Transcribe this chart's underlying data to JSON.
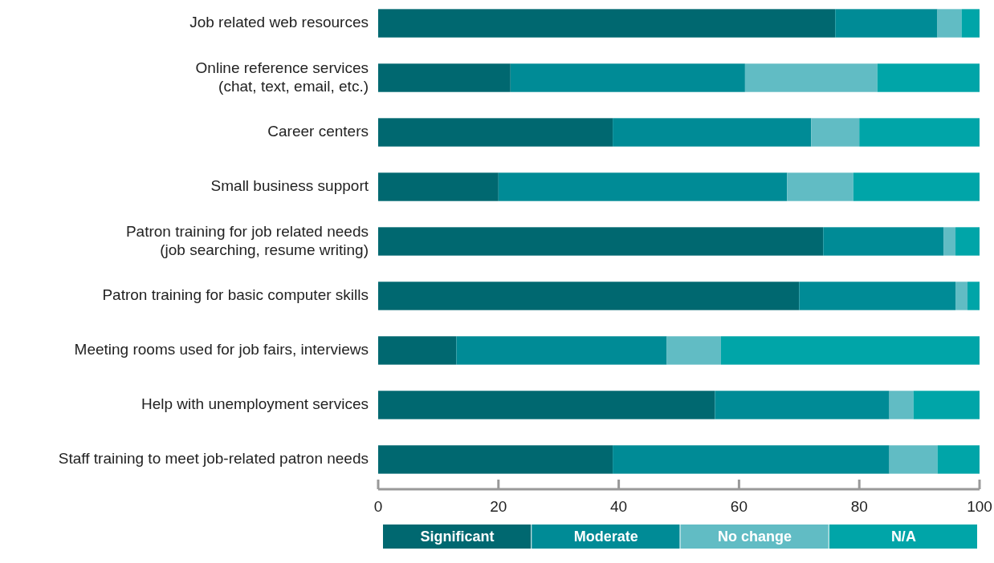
{
  "chart_data": {
    "type": "bar",
    "orientation": "horizontal",
    "stacked": true,
    "categories": [
      "Job related web resources",
      "Online reference services\n(chat, text, email, etc.)",
      "Career centers",
      "Small business support",
      "Patron training for job related needs\n(job searching, resume writing)",
      "Patron training for basic computer skills",
      "Meeting rooms used for job fairs, interviews",
      "Help with unemployment services",
      "Staff training to meet job-related patron needs"
    ],
    "series": [
      {
        "name": "Significant",
        "color": "#006870",
        "values": [
          76,
          22,
          39,
          20,
          74,
          70,
          13,
          56,
          39
        ]
      },
      {
        "name": "Moderate",
        "color": "#008b96",
        "values": [
          17,
          39,
          33,
          48,
          20,
          26,
          35,
          29,
          46
        ]
      },
      {
        "name": "No change",
        "color": "#61bcc4",
        "values": [
          4,
          22,
          8,
          11,
          2,
          2,
          9,
          4,
          8
        ]
      },
      {
        "name": "N/A",
        "color": "#00a5a8",
        "values": [
          3,
          17,
          20,
          21,
          4,
          2,
          43,
          11,
          7
        ]
      }
    ],
    "xlim": [
      0,
      100
    ],
    "xticks": [
      0,
      20,
      40,
      60,
      80,
      100
    ],
    "legend": "bottom"
  }
}
